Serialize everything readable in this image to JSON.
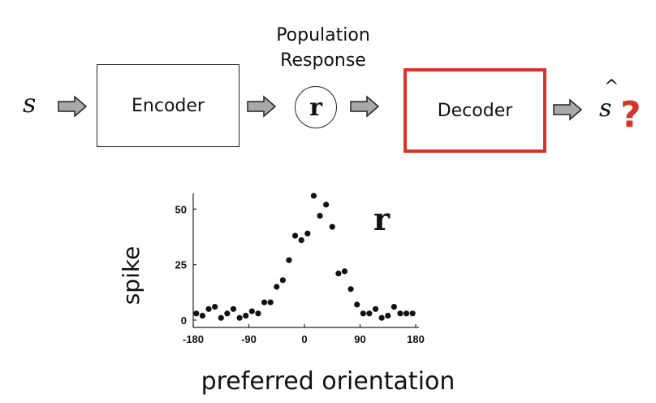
{
  "diagram": {
    "stimulus_label": "s",
    "encoder_label": "Encoder",
    "population_label_line1": "Population",
    "population_label_line2": "Response",
    "response_symbol": "r",
    "decoder_label": "Decoder",
    "estimate_label": "s",
    "estimate_hat": "^",
    "question_mark": "?",
    "colors": {
      "decoder_border": "#d8332a",
      "question": "#d8332a",
      "arrow_fill": "#a9a9a9"
    }
  },
  "chart_data": {
    "type": "scatter",
    "title": "",
    "series_label": "r",
    "xlabel": "preferred orientation",
    "ylabel": "spike",
    "xlim": [
      -180,
      180
    ],
    "ylim": [
      0,
      60
    ],
    "xticks": [
      -180,
      -90,
      0,
      90,
      180
    ],
    "yticks": [
      0,
      25,
      50
    ],
    "x": [
      -175,
      -165,
      -155,
      -145,
      -135,
      -125,
      -115,
      -105,
      -95,
      -85,
      -75,
      -65,
      -55,
      -45,
      -35,
      -25,
      -15,
      -5,
      5,
      15,
      25,
      35,
      45,
      55,
      65,
      75,
      85,
      95,
      105,
      115,
      125,
      135,
      145,
      155,
      165,
      175
    ],
    "y": [
      3,
      2,
      5,
      6,
      1,
      3,
      5,
      1,
      2,
      4,
      3,
      8,
      8,
      15,
      18,
      27,
      38,
      36,
      39,
      56,
      47,
      52,
      42,
      21,
      22,
      14,
      7,
      3,
      3,
      5,
      1,
      2,
      6,
      3,
      3,
      3
    ]
  }
}
